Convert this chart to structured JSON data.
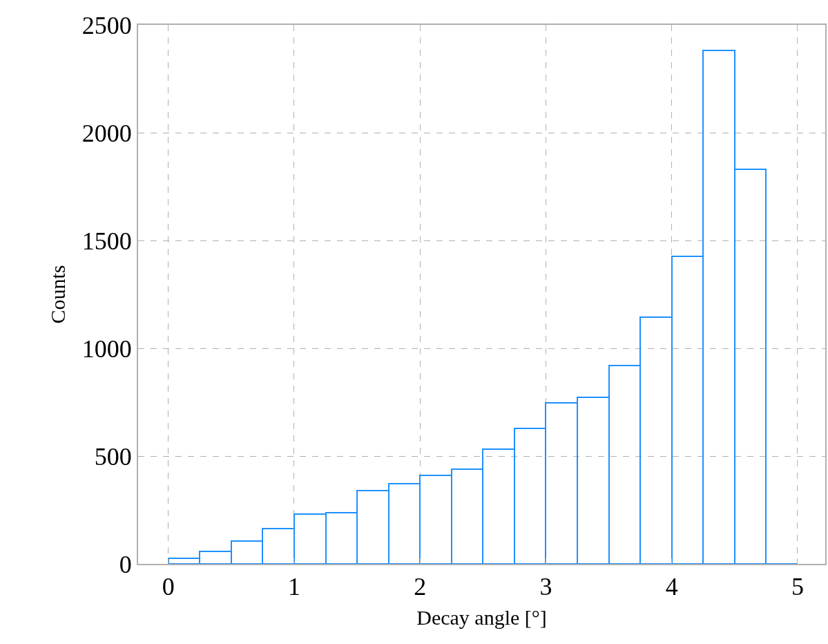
{
  "chart_data": {
    "type": "histogram",
    "xlabel": "Decay angle [°]",
    "ylabel": "Counts",
    "bins": [
      0,
      0.25,
      0.5,
      0.75,
      1,
      1.25,
      1.5,
      1.75,
      2,
      2.25,
      2.5,
      2.75,
      3,
      3.25,
      3.5,
      3.75,
      4,
      4.25,
      4.5,
      4.75,
      5
    ],
    "values": [
      25,
      58,
      106,
      163,
      231,
      237,
      340,
      372,
      410,
      439,
      532,
      628,
      747,
      772,
      920,
      1144,
      1426,
      2381,
      1830,
      0
    ],
    "color": "#1e90ff",
    "xlim": [
      -0.24,
      5.22
    ],
    "xticks": [
      0,
      1,
      2,
      3,
      4,
      5
    ],
    "ylim": [
      0,
      2500
    ],
    "yticks": [
      0,
      500,
      1000,
      1500,
      2000,
      2500
    ],
    "grid": true
  }
}
